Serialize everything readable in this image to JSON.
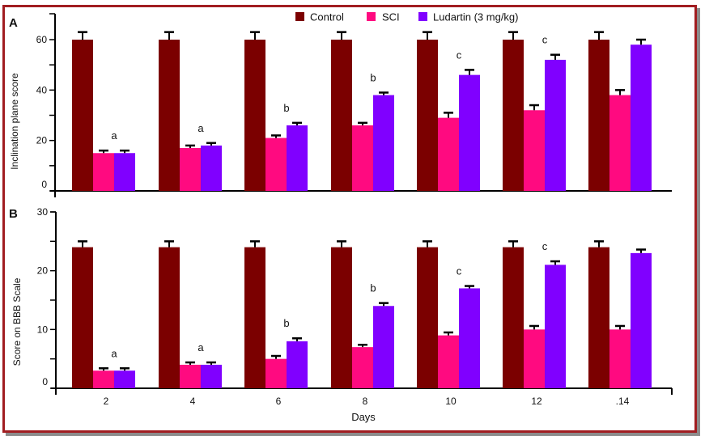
{
  "colors": {
    "frame": "#a11d21",
    "Control": "#7b0000",
    "SCI": "#ff0a80",
    "Ludartin (3 mg/kg)": "#8000ff",
    "axis": "#000000"
  },
  "chart_data": [
    {
      "panel": "A",
      "type": "bar",
      "title": "",
      "xlabel": "",
      "ylabel": "Inclination plane score",
      "ylim": [
        0,
        70
      ],
      "yticks": [
        0,
        10,
        20,
        30,
        40,
        50,
        60
      ],
      "ytick_labels": [
        "0",
        "",
        "20",
        "",
        "40",
        "",
        "60"
      ],
      "categories": [
        "2",
        "4",
        "6",
        "8",
        "10",
        "12",
        ".14"
      ],
      "series": [
        {
          "name": "Control",
          "values": [
            60,
            60,
            60,
            60,
            60,
            60,
            60
          ],
          "errors": [
            3,
            3,
            3,
            3,
            3,
            3,
            3
          ]
        },
        {
          "name": "SCI",
          "values": [
            15,
            17,
            21,
            26,
            29,
            32,
            38
          ],
          "errors": [
            1,
            1,
            1,
            1,
            2,
            2,
            2
          ]
        },
        {
          "name": "Ludartin (3 mg/kg)",
          "values": [
            15,
            18,
            26,
            38,
            46,
            52,
            58
          ],
          "errors": [
            1,
            1,
            1,
            1,
            2,
            2,
            2
          ]
        }
      ],
      "annotations": [
        "a",
        "a",
        "b",
        "b",
        "c",
        "c",
        ""
      ],
      "grid": false,
      "legend": "top-center"
    },
    {
      "panel": "B",
      "type": "bar",
      "title": "",
      "xlabel": "Days",
      "ylabel": "Score on BBB Scale",
      "ylim": [
        0,
        30
      ],
      "yticks": [
        0,
        5,
        10,
        15,
        20,
        25,
        30
      ],
      "ytick_labels": [
        "0",
        "",
        "10",
        "",
        "20",
        "",
        "30"
      ],
      "categories": [
        "2",
        "4",
        "6",
        "8",
        "10",
        "12",
        ".14"
      ],
      "series": [
        {
          "name": "Control",
          "values": [
            24,
            24,
            24,
            24,
            24,
            24,
            24
          ],
          "errors": [
            1,
            1,
            1,
            1,
            1,
            1,
            1
          ]
        },
        {
          "name": "SCI",
          "values": [
            3,
            4,
            5,
            7,
            9,
            10,
            10
          ],
          "errors": [
            0.4,
            0.4,
            0.5,
            0.4,
            0.5,
            0.6,
            0.6
          ]
        },
        {
          "name": "Ludartin (3 mg/kg)",
          "values": [
            3,
            4,
            8,
            14,
            17,
            21,
            23
          ],
          "errors": [
            0.4,
            0.4,
            0.5,
            0.5,
            0.4,
            0.6,
            0.6
          ]
        }
      ],
      "annotations": [
        "a",
        "a",
        "b",
        "b",
        "c",
        "c",
        ""
      ],
      "grid": false,
      "legend": "none"
    }
  ],
  "legend": [
    {
      "label": "Control",
      "color": "#7b0000"
    },
    {
      "label": "SCI",
      "color": "#ff0a80"
    },
    {
      "label": "Ludartin (3 mg/kg)",
      "color": "#8000ff"
    }
  ]
}
